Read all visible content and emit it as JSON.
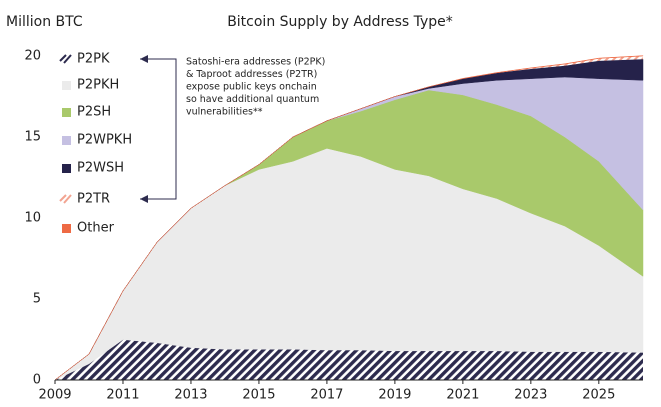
{
  "chart_data": {
    "type": "stacked_area",
    "title": "Bitcoin Supply by Address Type*",
    "y_label": "Million BTC",
    "annotation": [
      "Satoshi-era addresses (P2PK)",
      "& Taproot addresses (P2TR)",
      "expose public keys onchain",
      "so have additional quantum",
      "vulnerabilities**"
    ],
    "x": [
      2009,
      2010,
      2011,
      2012,
      2013,
      2014,
      2015,
      2016,
      2017,
      2018,
      2019,
      2020,
      2021,
      2022,
      2023,
      2024,
      2025,
      2026.3
    ],
    "xlim": [
      2009,
      2026.3
    ],
    "xticks": [
      2009,
      2011,
      2013,
      2015,
      2017,
      2019,
      2021,
      2023,
      2025
    ],
    "ylim": [
      0,
      20
    ],
    "yticks": [
      0,
      5,
      10,
      15,
      20
    ],
    "series": [
      {
        "name": "P2PK",
        "color": "#2d2b4e",
        "pattern": "hatch",
        "values": [
          0,
          1.0,
          2.5,
          2.3,
          2.0,
          1.9,
          1.9,
          1.9,
          1.85,
          1.85,
          1.8,
          1.8,
          1.8,
          1.8,
          1.75,
          1.75,
          1.75,
          1.7
        ]
      },
      {
        "name": "P2PKH",
        "color": "#ebebeb",
        "values": [
          0,
          0.6,
          3.0,
          6.2,
          8.6,
          10.1,
          11.1,
          11.6,
          12.45,
          11.95,
          11.2,
          10.8,
          10.0,
          9.4,
          8.55,
          7.75,
          6.55,
          4.7
        ]
      },
      {
        "name": "P2SH",
        "color": "#a9c96b",
        "values": [
          0,
          0,
          0,
          0,
          0,
          0,
          0.3,
          1.5,
          1.7,
          2.8,
          4.3,
          5.3,
          5.8,
          5.8,
          6.0,
          5.5,
          5.2,
          4.1
        ]
      },
      {
        "name": "P2WPKH",
        "color": "#c5c0e2",
        "values": [
          0,
          0,
          0,
          0,
          0,
          0,
          0,
          0,
          0,
          0.15,
          0.2,
          0.1,
          0.7,
          1.5,
          2.3,
          3.7,
          5.1,
          8.0
        ]
      },
      {
        "name": "P2WSH",
        "color": "#25224a",
        "values": [
          0,
          0,
          0,
          0,
          0,
          0,
          0,
          0,
          0,
          0,
          0,
          0.1,
          0.3,
          0.45,
          0.6,
          0.7,
          1.1,
          1.3
        ]
      },
      {
        "name": "P2TR",
        "color": "#f2a491",
        "pattern": "hatch",
        "values": [
          0,
          0,
          0,
          0,
          0,
          0,
          0,
          0,
          0,
          0,
          0,
          0,
          0,
          0.01,
          0.05,
          0.1,
          0.15,
          0.2
        ]
      },
      {
        "name": "Other",
        "color": "#ee6a44",
        "values": [
          0,
          0,
          0,
          0,
          0,
          0,
          0,
          0,
          0,
          0,
          0,
          0,
          0.02,
          0.02,
          0.02,
          0.02,
          0.02,
          0.02
        ]
      }
    ]
  }
}
